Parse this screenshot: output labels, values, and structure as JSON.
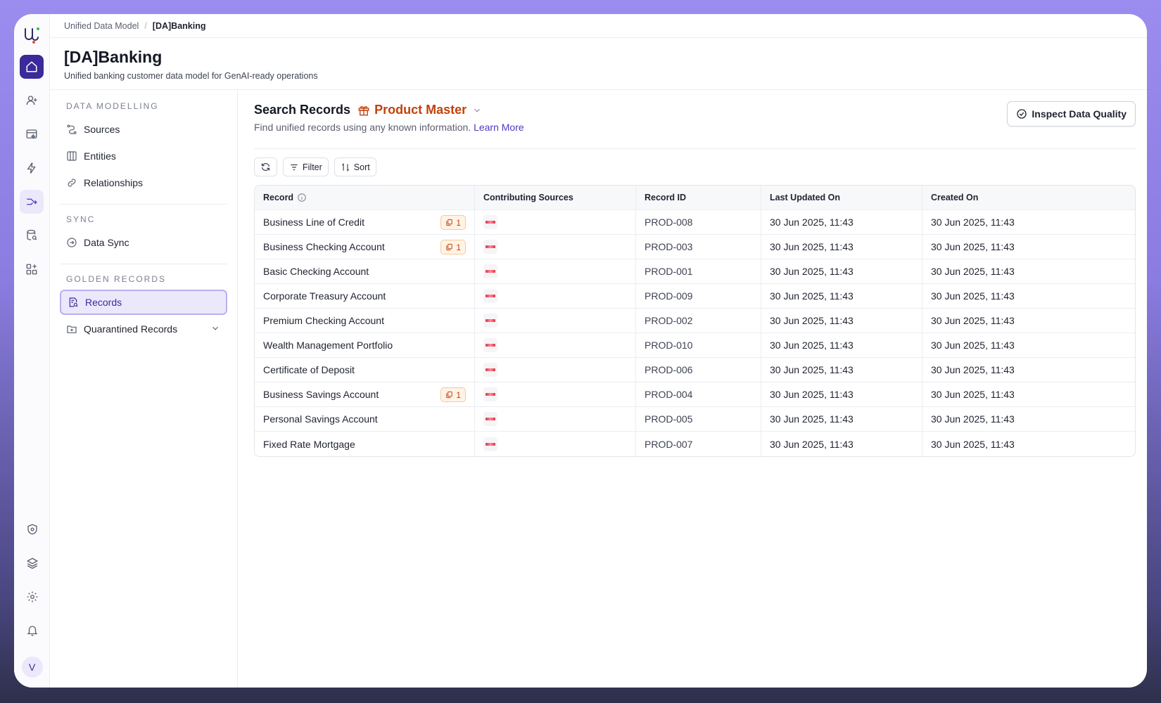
{
  "breadcrumb": {
    "root": "Unified Data Model",
    "current": "[DA]Banking"
  },
  "page": {
    "title": "[DA]Banking",
    "subtitle": "Unified banking customer data model for GenAI-ready operations"
  },
  "rail": {
    "avatar_initial": "V"
  },
  "sidebar": {
    "sections": {
      "data_modelling": "DATA MODELLING",
      "sync": "SYNC",
      "golden_records": "GOLDEN RECORDS"
    },
    "items": {
      "sources": "Sources",
      "entities": "Entities",
      "relationships": "Relationships",
      "data_sync": "Data Sync",
      "records": "Records",
      "quarantined": "Quarantined Records"
    }
  },
  "content": {
    "title": "Search Records",
    "entity": "Product Master",
    "subtitle": "Find unified records using any known information.",
    "learn_more": "Learn More",
    "inspect_button": "Inspect Data Quality",
    "toolbar": {
      "filter": "Filter",
      "sort": "Sort"
    }
  },
  "table": {
    "headers": {
      "record": "Record",
      "sources": "Contributing Sources",
      "record_id": "Record ID",
      "updated": "Last Updated On",
      "created": "Created On"
    },
    "rows": [
      {
        "name": "Business Line of Credit",
        "badge": "1",
        "id": "PROD-008",
        "updated": "30 Jun 2025, 11:43",
        "created": "30 Jun 2025, 11:43"
      },
      {
        "name": "Business Checking Account",
        "badge": "1",
        "id": "PROD-003",
        "updated": "30 Jun 2025, 11:43",
        "created": "30 Jun 2025, 11:43"
      },
      {
        "name": "Basic Checking Account",
        "badge": "",
        "id": "PROD-001",
        "updated": "30 Jun 2025, 11:43",
        "created": "30 Jun 2025, 11:43"
      },
      {
        "name": "Corporate Treasury Account",
        "badge": "",
        "id": "PROD-009",
        "updated": "30 Jun 2025, 11:43",
        "created": "30 Jun 2025, 11:43"
      },
      {
        "name": "Premium Checking Account",
        "badge": "",
        "id": "PROD-002",
        "updated": "30 Jun 2025, 11:43",
        "created": "30 Jun 2025, 11:43"
      },
      {
        "name": "Wealth Management Portfolio",
        "badge": "",
        "id": "PROD-010",
        "updated": "30 Jun 2025, 11:43",
        "created": "30 Jun 2025, 11:43"
      },
      {
        "name": "Certificate of Deposit",
        "badge": "",
        "id": "PROD-006",
        "updated": "30 Jun 2025, 11:43",
        "created": "30 Jun 2025, 11:43"
      },
      {
        "name": "Business Savings Account",
        "badge": "1",
        "id": "PROD-004",
        "updated": "30 Jun 2025, 11:43",
        "created": "30 Jun 2025, 11:43"
      },
      {
        "name": "Personal Savings Account",
        "badge": "",
        "id": "PROD-005",
        "updated": "30 Jun 2025, 11:43",
        "created": "30 Jun 2025, 11:43"
      },
      {
        "name": "Fixed Rate Mortgage",
        "badge": "",
        "id": "PROD-007",
        "updated": "30 Jun 2025, 11:43",
        "created": "30 Jun 2025, 11:43"
      }
    ]
  },
  "colors": {
    "accent": "#3b2a9a",
    "entity": "#c2410c",
    "link": "#4b3bc4"
  }
}
